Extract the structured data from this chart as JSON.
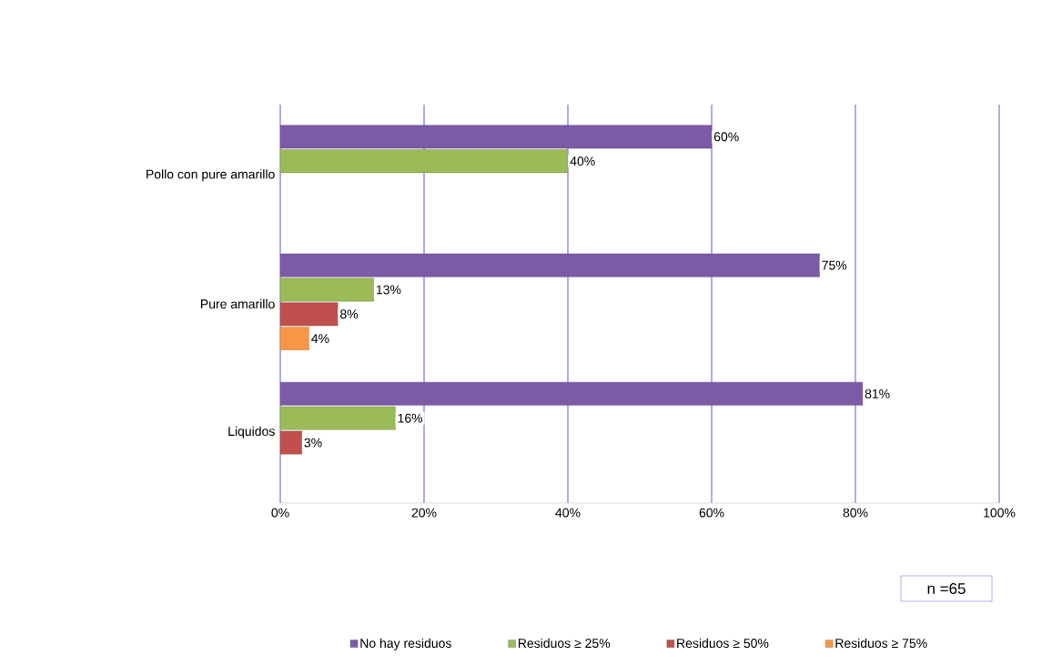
{
  "chart_data": {
    "type": "bar",
    "orientation": "horizontal",
    "categories": [
      "Pollo con pure amarillo",
      "Pure amarillo",
      "Liquidos"
    ],
    "series": [
      {
        "name": "No hay residuos",
        "color": "#7b5aa6",
        "values": [
          60,
          75,
          81
        ],
        "value_labels": [
          "60%",
          "75%",
          "81%"
        ]
      },
      {
        "name": "Residuos ≥ 25%",
        "color": "#9bbb59",
        "values": [
          40,
          13,
          16
        ],
        "value_labels": [
          "40%",
          "13%",
          "16%"
        ]
      },
      {
        "name": "Residuos ≥ 50%",
        "color": "#c0504d",
        "values": [
          null,
          8,
          3
        ],
        "value_labels": [
          null,
          "8%",
          "3%"
        ]
      },
      {
        "name": "Residuos ≥ 75%",
        "color": "#f79646",
        "values": [
          null,
          4,
          null
        ],
        "value_labels": [
          null,
          "4%",
          null
        ]
      }
    ],
    "xlim": [
      0,
      100
    ],
    "xticks": [
      {
        "value": 0,
        "label": "0%"
      },
      {
        "value": 20,
        "label": "20%"
      },
      {
        "value": 40,
        "label": "40%"
      },
      {
        "value": 60,
        "label": "60%"
      },
      {
        "value": 80,
        "label": "80%"
      },
      {
        "value": 100,
        "label": "100%"
      }
    ],
    "grid": "x",
    "legend": "bottom",
    "annotations": [
      "n =65"
    ]
  }
}
